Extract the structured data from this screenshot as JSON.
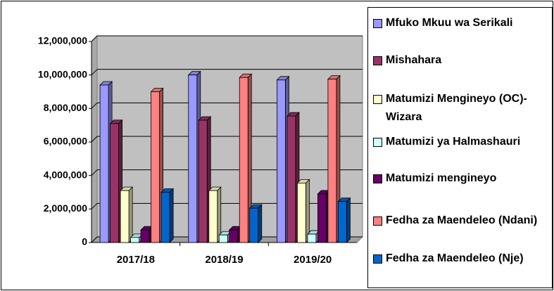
{
  "chart_data": {
    "type": "bar",
    "categories": [
      "2017/18",
      "2018/19",
      "2019/20"
    ],
    "series": [
      {
        "name": "Mfuko Mkuu wa Serikali",
        "color": "#9999ff",
        "values": [
          9400000,
          10000000,
          9700000
        ]
      },
      {
        "name": "Mishahara",
        "color": "#993366",
        "values": [
          7100000,
          7300000,
          7550000
        ]
      },
      {
        "name": "Matumizi Mengineyo (OC)-Wizara",
        "color": "#ffffcc",
        "values": [
          3100000,
          3100000,
          3550000
        ]
      },
      {
        "name": "Matumizi ya Halmashauri",
        "color": "#ccffff",
        "values": [
          300000,
          450000,
          500000
        ]
      },
      {
        "name": "Matumizi mengineyo",
        "color": "#660066",
        "values": [
          750000,
          750000,
          2900000
        ]
      },
      {
        "name": "Fedha za Maendeleo (Ndani)",
        "color": "#ff8080",
        "values": [
          9000000,
          9850000,
          9750000
        ]
      },
      {
        "name": "Fedha za Maendeleo (Nje)",
        "color": "#0066cc",
        "values": [
          3000000,
          2050000,
          2450000
        ]
      }
    ],
    "ylim": [
      0,
      12000000
    ],
    "yticks": [
      0,
      {
        "value": 2000000,
        "label": "2,000,000"
      },
      {
        "value": 4000000,
        "label": "4,000,000"
      },
      {
        "value": 6000000,
        "label": "6,000,000"
      },
      {
        "value": 8000000,
        "label": "8,000,000"
      },
      {
        "value": 10000000,
        "label": "10,000,000"
      },
      {
        "value": 12000000,
        "label": "12,000,000"
      }
    ],
    "grid": true,
    "legend": "right"
  }
}
